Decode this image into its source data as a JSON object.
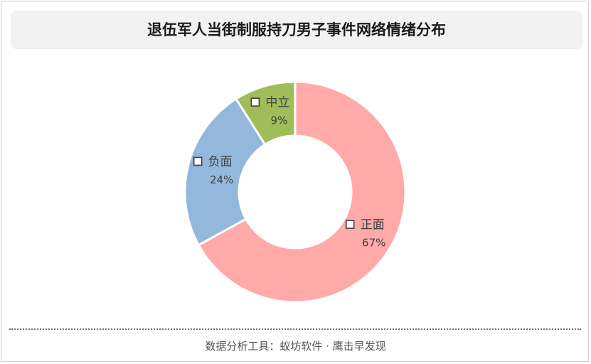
{
  "title": "退伍军人当街制服持刀男子事件网络情绪分布",
  "footer": "数据分析工具：蚁坊软件 · 鹰击早发现",
  "chart_data": {
    "type": "pie",
    "donut": true,
    "categories": [
      "正面",
      "负面",
      "中立"
    ],
    "values": [
      67,
      24,
      9
    ],
    "value_labels": [
      "67%",
      "24%",
      "9%"
    ],
    "colors": [
      "#ffaaa8",
      "#94b8dd",
      "#9fbe5a"
    ],
    "title": "退伍军人当街制服持刀男子事件网络情绪分布",
    "legend": "none",
    "start_angle_deg": 0,
    "direction": "clockwise"
  }
}
